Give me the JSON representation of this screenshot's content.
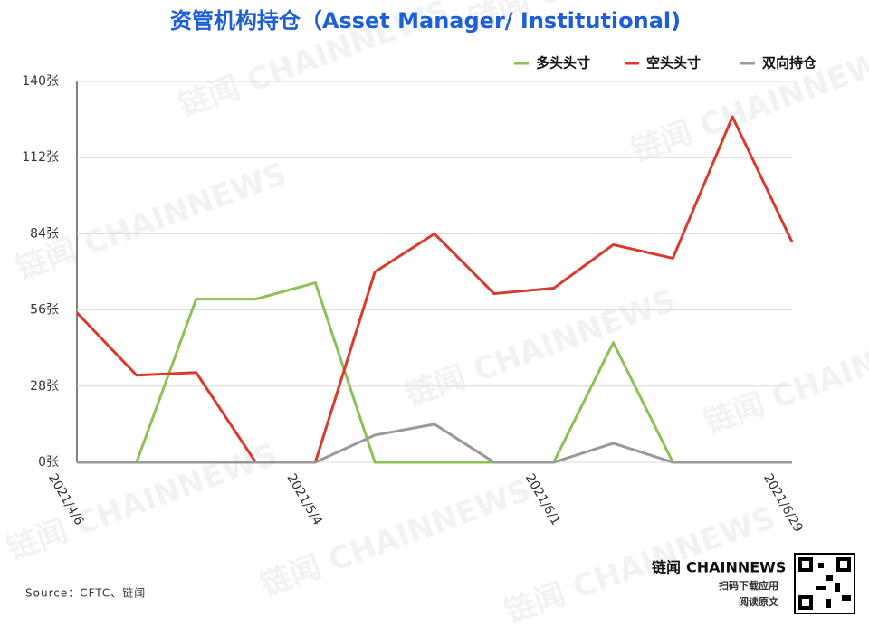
{
  "chart_data": {
    "type": "line",
    "title": "资管机构持仓（Asset Manager/ Institutional)",
    "categories": [
      "2021/4/6",
      null,
      null,
      null,
      "2021/5/4",
      null,
      null,
      null,
      "2021/6/1",
      null,
      null,
      null,
      "2021/6/29"
    ],
    "series": [
      {
        "name": "多头头寸",
        "color": "#8dc155",
        "values": [
          0,
          0,
          60,
          60,
          66,
          0,
          0,
          0,
          0,
          44,
          0,
          0,
          0
        ]
      },
      {
        "name": "空头头寸",
        "color": "#d93a2b",
        "values": [
          55,
          32,
          33,
          0,
          0,
          70,
          84,
          62,
          64,
          80,
          75,
          127,
          81
        ]
      },
      {
        "name": "双向持仓",
        "color": "#999999",
        "values": [
          0,
          0,
          0,
          0,
          0,
          10,
          14,
          0,
          0,
          7,
          0,
          0,
          0
        ]
      }
    ],
    "ylim": [
      0,
      140
    ],
    "yticks": [
      {
        "value": 0,
        "label": "0张"
      },
      {
        "value": 28,
        "label": "28张"
      },
      {
        "value": 56,
        "label": "56张"
      },
      {
        "value": 84,
        "label": "84张"
      },
      {
        "value": 112,
        "label": "112张"
      },
      {
        "value": 140,
        "label": "140张"
      }
    ],
    "grid": true,
    "legend": "top-right",
    "source": "Source：CFTC、链闻",
    "watermark": "链闻 CHAINNEWS",
    "logo": {
      "brand_cn": "链闻",
      "brand_en": "CHAINNEWS",
      "line1": "扫码下载应用",
      "line2": "阅读原文"
    }
  }
}
